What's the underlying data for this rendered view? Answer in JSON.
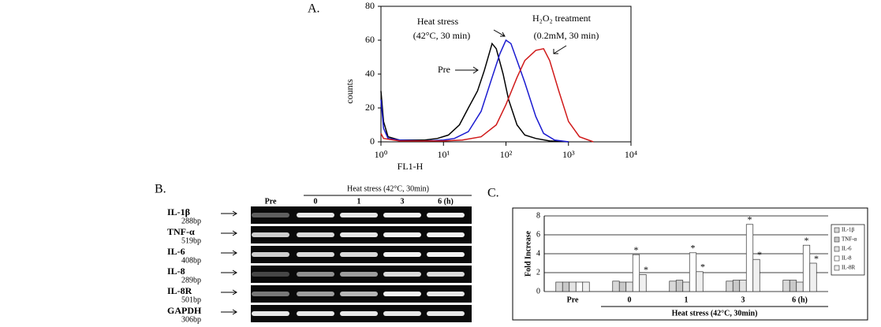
{
  "chart_data": [
    {
      "type": "line",
      "panel_label": "A.",
      "x_label": "FL1-H",
      "y_label": "counts",
      "xscale": "log",
      "xlim": [
        1,
        10000
      ],
      "xticks": [
        {
          "value": 1,
          "label": "10⁰"
        },
        {
          "value": 10,
          "label": "10¹"
        },
        {
          "value": 100,
          "label": "10²"
        },
        {
          "value": 1000,
          "label": "10³"
        },
        {
          "value": 10000,
          "label": "10⁴"
        }
      ],
      "ylim": [
        0,
        80
      ],
      "yticks": [
        0,
        20,
        40,
        60,
        80
      ],
      "series": [
        {
          "name": "Pre",
          "color": "#000000",
          "x": [
            1,
            1.1,
            1.3,
            2,
            3,
            5,
            8,
            12,
            18,
            25,
            35,
            45,
            60,
            70,
            90,
            110,
            150,
            200,
            300,
            500,
            1000
          ],
          "values": [
            30,
            12,
            3,
            1,
            1,
            1,
            2,
            4,
            10,
            20,
            30,
            42,
            58,
            55,
            40,
            25,
            10,
            4,
            2,
            0.5,
            0
          ]
        },
        {
          "name": "Heat stress",
          "note": "(42°C, 30 min)",
          "color": "#1a1ad0",
          "x": [
            1,
            1.1,
            1.3,
            2,
            5,
            10,
            15,
            25,
            40,
            60,
            80,
            100,
            120,
            150,
            200,
            300,
            400,
            600,
            1000
          ],
          "values": [
            25,
            8,
            2,
            1,
            0.5,
            1,
            2,
            6,
            18,
            38,
            52,
            60,
            58,
            48,
            35,
            15,
            5,
            1,
            0
          ]
        },
        {
          "name": "H₂O₂ treatment",
          "note": "(0.2mM, 30 min)",
          "color": "#d01a1a",
          "x": [
            1,
            1.1,
            2,
            5,
            10,
            20,
            40,
            70,
            100,
            150,
            200,
            300,
            400,
            500,
            700,
            1000,
            1500,
            2500
          ],
          "values": [
            5,
            2,
            0.5,
            0.5,
            0.5,
            1,
            3,
            10,
            22,
            38,
            48,
            54,
            55,
            48,
            30,
            12,
            3,
            0
          ]
        }
      ]
    },
    {
      "type": "bar",
      "panel_label": "C.",
      "x_label": "Heat stress (42°C, 30min)",
      "y_label": "Fold Increase",
      "categories": [
        "Pre",
        "0",
        "1",
        "3",
        "6 (h)"
      ],
      "ylim": [
        0,
        8
      ],
      "yticks": [
        0,
        2,
        4,
        6,
        8
      ],
      "grid": true,
      "legend": "right",
      "significance_mark": "*",
      "series": [
        {
          "name": "IL-1β",
          "color": "#d8d8d8",
          "values": [
            1,
            1.1,
            1.1,
            1.1,
            1.2
          ]
        },
        {
          "name": "TNF-α",
          "color": "#c8c8c8",
          "values": [
            1,
            1,
            1.2,
            1.2,
            1.2
          ]
        },
        {
          "name": "IL-6",
          "color": "#e4e4e4",
          "values": [
            1,
            1,
            1,
            1.2,
            1
          ]
        },
        {
          "name": "IL-8",
          "color": "#ffffff",
          "values": [
            1,
            3.9,
            4.1,
            7.1,
            4.9
          ]
        },
        {
          "name": "IL-8R",
          "color": "#f0f0f0",
          "values": [
            1,
            1.8,
            2.1,
            3.4,
            3.0
          ]
        }
      ]
    }
  ],
  "gel_panel": {
    "panel_label": "B.",
    "header": "Heat stress (42°C, 30min)",
    "lanes": [
      "Pre",
      "0",
      "1",
      "3",
      "6 (h)"
    ],
    "rows": [
      {
        "gene": "IL-1β",
        "size": "288bp"
      },
      {
        "gene": "TNF-α",
        "size": "519bp"
      },
      {
        "gene": "IL-6",
        "size": "408bp"
      },
      {
        "gene": "IL-8",
        "size": "289bp"
      },
      {
        "gene": "IL-8R",
        "size": "501bp"
      },
      {
        "gene": "GAPDH",
        "size": "306bp"
      }
    ]
  }
}
